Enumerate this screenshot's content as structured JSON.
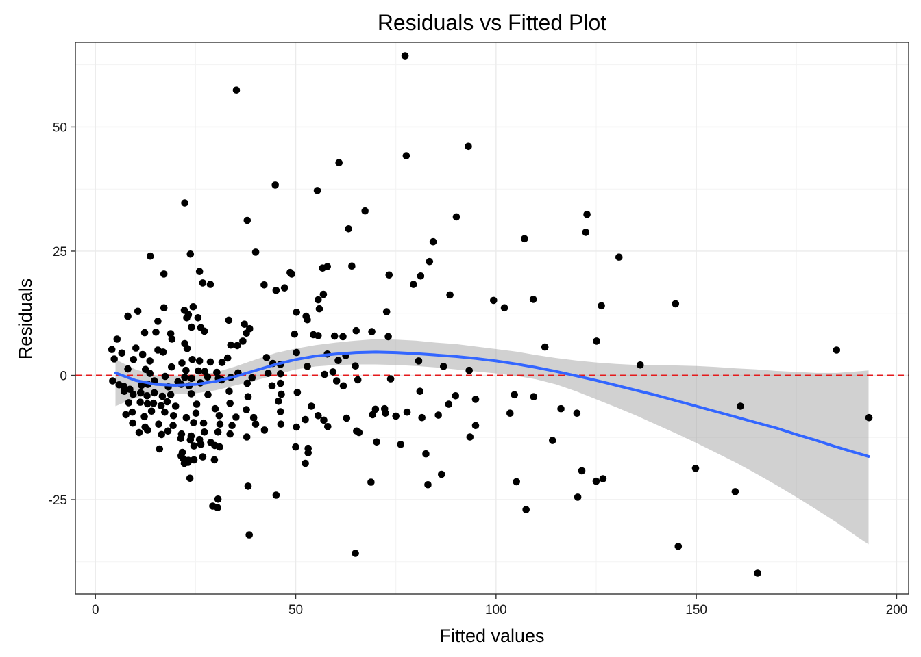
{
  "chart_data": {
    "type": "scatter",
    "title": "Residuals vs Fitted Plot",
    "xlabel": "Fitted values",
    "ylabel": "Residuals",
    "xlim": [
      -5,
      203
    ],
    "ylim": [
      -44,
      67
    ],
    "x_ticks": [
      0,
      50,
      100,
      150,
      200
    ],
    "y_ticks": [
      -25,
      0,
      25,
      50
    ],
    "x_tick_labels": [
      "0",
      "50",
      "100",
      "150",
      "200"
    ],
    "y_tick_labels": [
      "-25",
      "0",
      "25",
      "50"
    ],
    "grid": true,
    "reference_line": {
      "y": 0,
      "style": "dashed",
      "color": "#e41a1c"
    },
    "colors": {
      "points": "#000000",
      "smooth": "#3366ff",
      "band": "#999999",
      "grid": "#ebebeb",
      "border": "#333333"
    },
    "points": [
      [
        77.3,
        64.3
      ],
      [
        35.2,
        57.4
      ],
      [
        93.1,
        46.1
      ],
      [
        77.6,
        44.2
      ],
      [
        60.8,
        42.8
      ],
      [
        44.9,
        38.3
      ],
      [
        55.4,
        37.2
      ],
      [
        22.3,
        34.7
      ],
      [
        67.3,
        33.1
      ],
      [
        122.7,
        32.4
      ],
      [
        90.1,
        31.9
      ],
      [
        37.9,
        31.2
      ],
      [
        63.2,
        29.5
      ],
      [
        122.4,
        28.8
      ],
      [
        84.3,
        26.9
      ],
      [
        107.1,
        27.5
      ],
      [
        23.7,
        24.4
      ],
      [
        40.0,
        24.8
      ],
      [
        13.7,
        24.0
      ],
      [
        130.7,
        23.8
      ],
      [
        83.4,
        22.9
      ],
      [
        64.0,
        22.0
      ],
      [
        57.9,
        21.9
      ],
      [
        56.7,
        21.6
      ],
      [
        26.0,
        20.9
      ],
      [
        48.6,
        20.7
      ],
      [
        17.1,
        20.4
      ],
      [
        73.3,
        20.2
      ],
      [
        81.2,
        20.0
      ],
      [
        26.8,
        18.6
      ],
      [
        28.7,
        18.3
      ],
      [
        42.1,
        18.2
      ],
      [
        79.4,
        18.3
      ],
      [
        45.1,
        17.1
      ],
      [
        56.9,
        16.3
      ],
      [
        88.5,
        16.2
      ],
      [
        109.3,
        15.3
      ],
      [
        55.6,
        15.2
      ],
      [
        99.4,
        15.1
      ],
      [
        144.8,
        14.4
      ],
      [
        126.3,
        14.0
      ],
      [
        102.1,
        13.6
      ],
      [
        24.4,
        13.8
      ],
      [
        17.1,
        13.6
      ],
      [
        55.9,
        13.4
      ],
      [
        22.2,
        13.1
      ],
      [
        10.6,
        12.9
      ],
      [
        50.2,
        12.7
      ],
      [
        72.7,
        12.8
      ],
      [
        8.1,
        11.9
      ],
      [
        23.2,
        12.2
      ],
      [
        25.6,
        11.6
      ],
      [
        52.6,
        11.9
      ],
      [
        22.8,
        11.6
      ],
      [
        52.9,
        11.2
      ],
      [
        33.3,
        11.1
      ],
      [
        15.6,
        10.9
      ],
      [
        37.2,
        10.3
      ],
      [
        24.0,
        9.7
      ],
      [
        26.3,
        9.6
      ],
      [
        38.5,
        9.4
      ],
      [
        65.1,
        9.0
      ],
      [
        69.0,
        8.8
      ],
      [
        12.3,
        8.6
      ],
      [
        15.1,
        8.7
      ],
      [
        18.8,
        8.4
      ],
      [
        27.2,
        8.9
      ],
      [
        37.7,
        8.5
      ],
      [
        49.7,
        8.3
      ],
      [
        54.4,
        8.2
      ],
      [
        55.6,
        8.0
      ],
      [
        59.7,
        7.9
      ],
      [
        61.8,
        7.8
      ],
      [
        73.1,
        7.8
      ],
      [
        5.4,
        7.3
      ],
      [
        35.4,
        6.0
      ],
      [
        33.8,
        6.1
      ],
      [
        22.3,
        6.4
      ],
      [
        19.1,
        7.3
      ],
      [
        36.8,
        6.9
      ],
      [
        125.1,
        6.9
      ],
      [
        112.2,
        5.7
      ],
      [
        185.0,
        5.1
      ],
      [
        4.1,
        5.2
      ],
      [
        10.1,
        5.5
      ],
      [
        16.9,
        4.7
      ],
      [
        15.6,
        5.1
      ],
      [
        22.9,
        5.4
      ],
      [
        6.6,
        4.5
      ],
      [
        11.8,
        4.2
      ],
      [
        50.2,
        4.6
      ],
      [
        57.9,
        4.3
      ],
      [
        62.5,
        4.0
      ],
      [
        42.7,
        3.6
      ],
      [
        33.0,
        3.5
      ],
      [
        4.7,
        3.3
      ],
      [
        9.5,
        3.2
      ],
      [
        13.6,
        2.9
      ],
      [
        24.2,
        3.2
      ],
      [
        26.0,
        2.9
      ],
      [
        28.7,
        2.7
      ],
      [
        21.6,
        2.5
      ],
      [
        31.6,
        2.6
      ],
      [
        44.3,
        2.4
      ],
      [
        46.2,
        2.2
      ],
      [
        52.9,
        1.8
      ],
      [
        60.6,
        3.0
      ],
      [
        64.9,
        1.9
      ],
      [
        80.7,
        2.9
      ],
      [
        86.9,
        1.8
      ],
      [
        93.3,
        1.0
      ],
      [
        136.0,
        2.1
      ],
      [
        8.1,
        1.3
      ],
      [
        12.5,
        1.2
      ],
      [
        19.0,
        1.7
      ],
      [
        22.6,
        1.0
      ],
      [
        25.7,
        0.9
      ],
      [
        27.3,
        0.8
      ],
      [
        30.3,
        0.6
      ],
      [
        35.6,
        0.5
      ],
      [
        43.1,
        0.4
      ],
      [
        46.2,
        0.3
      ],
      [
        57.2,
        0.2
      ],
      [
        59.3,
        0.7
      ],
      [
        13.6,
        0.4
      ],
      [
        17.4,
        -0.2
      ],
      [
        22.3,
        -0.4
      ],
      [
        24.0,
        -0.6
      ],
      [
        28.0,
        -0.3
      ],
      [
        30.7,
        -0.6
      ],
      [
        33.8,
        -0.4
      ],
      [
        39.1,
        -0.5
      ],
      [
        4.3,
        -1.1
      ],
      [
        5.9,
        -1.9
      ],
      [
        7.1,
        -2.2
      ],
      [
        8.6,
        -2.8
      ],
      [
        11.5,
        -2.0
      ],
      [
        13.1,
        -1.8
      ],
      [
        14.7,
        -1.1
      ],
      [
        18.2,
        -2.3
      ],
      [
        20.6,
        -1.3
      ],
      [
        21.4,
        -1.8
      ],
      [
        23.4,
        -2.1
      ],
      [
        26.2,
        -1.5
      ],
      [
        31.5,
        -0.9
      ],
      [
        37.9,
        -1.6
      ],
      [
        44.1,
        -2.1
      ],
      [
        46.2,
        -1.6
      ],
      [
        60.2,
        -1.1
      ],
      [
        61.9,
        -2.1
      ],
      [
        65.5,
        -0.9
      ],
      [
        73.7,
        -0.7
      ],
      [
        7.2,
        -3.2
      ],
      [
        9.4,
        -3.8
      ],
      [
        11.3,
        -3.5
      ],
      [
        12.9,
        -4.1
      ],
      [
        14.7,
        -3.5
      ],
      [
        16.7,
        -4.2
      ],
      [
        18.8,
        -3.9
      ],
      [
        23.9,
        -3.7
      ],
      [
        28.1,
        -3.9
      ],
      [
        33.4,
        -3.2
      ],
      [
        38.1,
        -4.3
      ],
      [
        46.4,
        -3.8
      ],
      [
        50.4,
        -3.4
      ],
      [
        81.0,
        -3.2
      ],
      [
        89.9,
        -4.1
      ],
      [
        94.9,
        -4.8
      ],
      [
        104.6,
        -3.9
      ],
      [
        109.4,
        -4.3
      ],
      [
        8.3,
        -5.5
      ],
      [
        11.2,
        -5.4
      ],
      [
        13.0,
        -5.7
      ],
      [
        14.5,
        -5.6
      ],
      [
        16.4,
        -6.1
      ],
      [
        17.9,
        -5.3
      ],
      [
        20.0,
        -6.2
      ],
      [
        25.3,
        -5.8
      ],
      [
        29.9,
        -6.7
      ],
      [
        33.6,
        -5.6
      ],
      [
        37.7,
        -6.9
      ],
      [
        45.7,
        -5.2
      ],
      [
        53.9,
        -6.2
      ],
      [
        69.9,
        -6.8
      ],
      [
        72.2,
        -6.7
      ],
      [
        77.8,
        -7.4
      ],
      [
        88.2,
        -5.8
      ],
      [
        116.2,
        -6.7
      ],
      [
        161.0,
        -6.2
      ],
      [
        7.6,
        -7.9
      ],
      [
        9.2,
        -7.4
      ],
      [
        12.2,
        -8.3
      ],
      [
        14.0,
        -7.2
      ],
      [
        17.3,
        -7.4
      ],
      [
        19.5,
        -8.1
      ],
      [
        22.7,
        -8.5
      ],
      [
        25.1,
        -7.6
      ],
      [
        30.9,
        -8.1
      ],
      [
        35.1,
        -8.4
      ],
      [
        39.5,
        -8.5
      ],
      [
        46.2,
        -7.3
      ],
      [
        52.4,
        -8.9
      ],
      [
        55.6,
        -8.1
      ],
      [
        57.0,
        -9.0
      ],
      [
        62.7,
        -8.6
      ],
      [
        69.2,
        -7.9
      ],
      [
        72.4,
        -7.6
      ],
      [
        75.0,
        -8.2
      ],
      [
        81.5,
        -8.5
      ],
      [
        85.6,
        -8.0
      ],
      [
        103.5,
        -7.6
      ],
      [
        120.2,
        -7.6
      ],
      [
        193.1,
        -8.5
      ],
      [
        9.3,
        -9.6
      ],
      [
        12.4,
        -10.4
      ],
      [
        15.8,
        -9.8
      ],
      [
        19.4,
        -10.1
      ],
      [
        24.5,
        -9.5
      ],
      [
        27.0,
        -9.6
      ],
      [
        31.1,
        -9.8
      ],
      [
        34.1,
        -10.1
      ],
      [
        40.0,
        -9.8
      ],
      [
        46.3,
        -9.8
      ],
      [
        50.2,
        -10.4
      ],
      [
        58.0,
        -10.3
      ],
      [
        65.8,
        -11.5
      ],
      [
        94.9,
        -10.1
      ],
      [
        10.9,
        -11.5
      ],
      [
        13.0,
        -11.0
      ],
      [
        16.5,
        -11.9
      ],
      [
        18.1,
        -11.2
      ],
      [
        21.5,
        -11.8
      ],
      [
        23.9,
        -12.2
      ],
      [
        27.2,
        -11.4
      ],
      [
        30.6,
        -11.4
      ],
      [
        33.6,
        -11.8
      ],
      [
        37.8,
        -12.4
      ],
      [
        42.2,
        -11.0
      ],
      [
        65.2,
        -11.2
      ],
      [
        93.5,
        -12.4
      ],
      [
        21.3,
        -12.7
      ],
      [
        23.7,
        -13.0
      ],
      [
        26.0,
        -12.9
      ],
      [
        28.8,
        -13.5
      ],
      [
        24.6,
        -14.2
      ],
      [
        26.3,
        -13.9
      ],
      [
        29.8,
        -14.1
      ],
      [
        31.0,
        -14.4
      ],
      [
        16.0,
        -14.8
      ],
      [
        21.7,
        -15.5
      ],
      [
        50.0,
        -14.4
      ],
      [
        53.1,
        -14.7
      ],
      [
        53.1,
        -15.6
      ],
      [
        70.2,
        -13.4
      ],
      [
        76.2,
        -13.9
      ],
      [
        82.5,
        -15.8
      ],
      [
        114.1,
        -13.1
      ],
      [
        21.4,
        -16.2
      ],
      [
        22.0,
        -16.8
      ],
      [
        23.2,
        -17.1
      ],
      [
        24.6,
        -17.0
      ],
      [
        26.8,
        -16.4
      ],
      [
        29.7,
        -17.0
      ],
      [
        22.2,
        -17.7
      ],
      [
        23.1,
        -17.5
      ],
      [
        52.4,
        -17.7
      ],
      [
        121.4,
        -19.2
      ],
      [
        125.0,
        -21.3
      ],
      [
        126.7,
        -20.8
      ],
      [
        86.4,
        -19.9
      ],
      [
        149.8,
        -18.7
      ],
      [
        23.6,
        -20.7
      ],
      [
        68.8,
        -21.5
      ],
      [
        83.0,
        -22.0
      ],
      [
        105.1,
        -21.4
      ],
      [
        159.7,
        -23.4
      ],
      [
        38.1,
        -22.3
      ],
      [
        45.1,
        -24.1
      ],
      [
        30.6,
        -24.9
      ],
      [
        29.3,
        -26.3
      ],
      [
        120.4,
        -24.5
      ],
      [
        30.5,
        -26.6
      ],
      [
        107.5,
        -27.0
      ],
      [
        38.4,
        -32.1
      ],
      [
        64.9,
        -35.8
      ],
      [
        145.5,
        -34.4
      ],
      [
        165.3,
        -39.8
      ],
      [
        47.2,
        17.6
      ],
      [
        49.0,
        20.4
      ]
    ],
    "smooth_line": [
      [
        5,
        0.5
      ],
      [
        10,
        -1.0
      ],
      [
        15,
        -1.8
      ],
      [
        20,
        -2.0
      ],
      [
        25,
        -1.8
      ],
      [
        30,
        -1.2
      ],
      [
        35,
        -0.2
      ],
      [
        40,
        1.0
      ],
      [
        45,
        2.2
      ],
      [
        50,
        3.2
      ],
      [
        55,
        3.9
      ],
      [
        60,
        4.3
      ],
      [
        65,
        4.6
      ],
      [
        70,
        4.7
      ],
      [
        75,
        4.6
      ],
      [
        80,
        4.4
      ],
      [
        85,
        4.1
      ],
      [
        90,
        3.8
      ],
      [
        95,
        3.4
      ],
      [
        100,
        2.9
      ],
      [
        105,
        2.3
      ],
      [
        110,
        1.6
      ],
      [
        115,
        0.8
      ],
      [
        120,
        -0.1
      ],
      [
        125,
        -1.0
      ],
      [
        130,
        -2.0
      ],
      [
        135,
        -3.0
      ],
      [
        140,
        -4.0
      ],
      [
        145,
        -5.1
      ],
      [
        150,
        -6.2
      ],
      [
        155,
        -7.3
      ],
      [
        160,
        -8.4
      ],
      [
        165,
        -9.5
      ],
      [
        170,
        -10.6
      ],
      [
        175,
        -11.9
      ],
      [
        180,
        -13.1
      ],
      [
        185,
        -14.4
      ],
      [
        190,
        -15.6
      ],
      [
        193,
        -16.3
      ]
    ],
    "confidence_band": {
      "upper": [
        [
          5,
          3.2
        ],
        [
          10,
          1.2
        ],
        [
          15,
          0.0
        ],
        [
          20,
          -0.2
        ],
        [
          25,
          0.0
        ],
        [
          30,
          0.6
        ],
        [
          35,
          1.8
        ],
        [
          40,
          3.2
        ],
        [
          45,
          4.5
        ],
        [
          50,
          5.4
        ],
        [
          55,
          6.1
        ],
        [
          60,
          6.6
        ],
        [
          65,
          7.0
        ],
        [
          70,
          7.3
        ],
        [
          75,
          7.2
        ],
        [
          80,
          7.0
        ],
        [
          85,
          6.6
        ],
        [
          90,
          6.3
        ],
        [
          95,
          5.8
        ],
        [
          100,
          5.3
        ],
        [
          105,
          4.8
        ],
        [
          110,
          4.1
        ],
        [
          115,
          3.5
        ],
        [
          120,
          3.0
        ],
        [
          125,
          2.6
        ],
        [
          130,
          2.3
        ],
        [
          135,
          2.1
        ],
        [
          140,
          2.0
        ],
        [
          145,
          2.0
        ],
        [
          150,
          1.9
        ],
        [
          155,
          1.7
        ],
        [
          160,
          1.4
        ],
        [
          165,
          1.2
        ],
        [
          170,
          0.9
        ],
        [
          175,
          0.7
        ],
        [
          180,
          0.5
        ],
        [
          185,
          0.5
        ],
        [
          190,
          0.8
        ],
        [
          193,
          1.0
        ]
      ],
      "lower": [
        [
          5,
          -6.2
        ],
        [
          10,
          -4.5
        ],
        [
          15,
          -3.8
        ],
        [
          20,
          -3.7
        ],
        [
          25,
          -3.6
        ],
        [
          30,
          -3.0
        ],
        [
          35,
          -2.0
        ],
        [
          40,
          -1.0
        ],
        [
          45,
          0.1
        ],
        [
          50,
          1.2
        ],
        [
          55,
          1.8
        ],
        [
          60,
          2.1
        ],
        [
          65,
          2.2
        ],
        [
          70,
          2.2
        ],
        [
          75,
          2.1
        ],
        [
          80,
          1.9
        ],
        [
          85,
          1.6
        ],
        [
          90,
          1.2
        ],
        [
          95,
          0.8
        ],
        [
          100,
          0.4
        ],
        [
          105,
          -0.1
        ],
        [
          110,
          -0.8
        ],
        [
          115,
          -1.8
        ],
        [
          120,
          -3.2
        ],
        [
          125,
          -4.8
        ],
        [
          130,
          -6.4
        ],
        [
          135,
          -8.1
        ],
        [
          140,
          -9.9
        ],
        [
          145,
          -11.7
        ],
        [
          150,
          -13.6
        ],
        [
          155,
          -15.6
        ],
        [
          160,
          -17.6
        ],
        [
          165,
          -19.8
        ],
        [
          170,
          -22.1
        ],
        [
          175,
          -24.5
        ],
        [
          180,
          -27.0
        ],
        [
          185,
          -29.6
        ],
        [
          190,
          -32.4
        ],
        [
          193,
          -34.0
        ]
      ]
    }
  }
}
